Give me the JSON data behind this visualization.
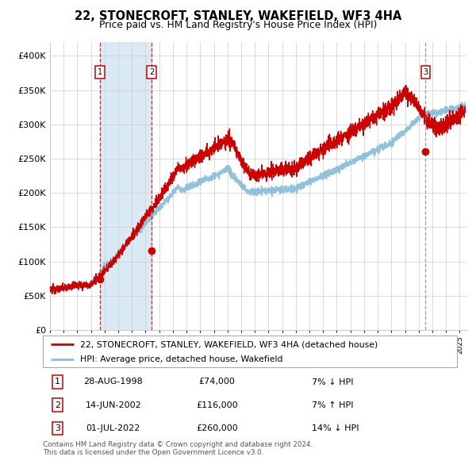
{
  "title": "22, STONECROFT, STANLEY, WAKEFIELD, WF3 4HA",
  "subtitle": "Price paid vs. HM Land Registry's House Price Index (HPI)",
  "legend_line1": "22, STONECROFT, STANLEY, WAKEFIELD, WF3 4HA (detached house)",
  "legend_line2": "HPI: Average price, detached house, Wakefield",
  "transactions": [
    {
      "label": "1",
      "date": "28-AUG-1998",
      "price": 74000,
      "relation": "7% ↓ HPI",
      "x": 1998.65
    },
    {
      "label": "2",
      "date": "14-JUN-2002",
      "price": 116000,
      "relation": "7% ↑ HPI",
      "x": 2002.45
    },
    {
      "label": "3",
      "date": "01-JUL-2022",
      "price": 260000,
      "relation": "14% ↓ HPI",
      "x": 2022.5
    }
  ],
  "copyright": "Contains HM Land Registry data © Crown copyright and database right 2024.\nThis data is licensed under the Open Government Licence v3.0.",
  "ylim": [
    0,
    420000
  ],
  "yticks": [
    0,
    50000,
    100000,
    150000,
    200000,
    250000,
    300000,
    350000,
    400000
  ],
  "xlim_start": 1995.0,
  "xlim_end": 2025.5,
  "red_color": "#cc0000",
  "blue_color": "#8bbfda",
  "shade_color": "#daeaf5",
  "grid_color": "#cccccc",
  "background_color": "#ffffff",
  "border_color": "#aaaaaa"
}
